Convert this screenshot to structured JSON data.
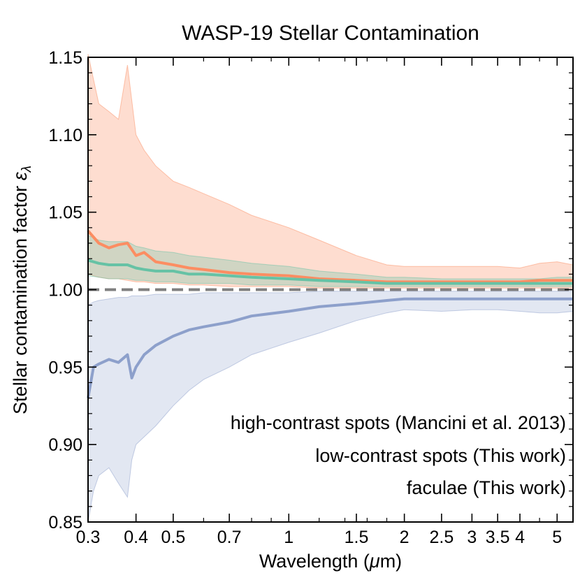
{
  "chart_data": {
    "type": "line",
    "title": "WASP-19 Stellar Contamination",
    "xlabel_main": "Wavelength (",
    "xlabel_unit_symbol": "μ",
    "xlabel_unit": "m)",
    "ylabel_main": "Stellar contamination factor ",
    "ylabel_symbol": "ε",
    "ylabel_sub": "λ",
    "x_scale": "log",
    "xlim": [
      0.3,
      5.5
    ],
    "ylim": [
      0.85,
      1.15
    ],
    "x_ticks": [
      {
        "value": 0.3,
        "label": "0.3"
      },
      {
        "value": 0.4,
        "label": "0.4"
      },
      {
        "value": 0.5,
        "label": "0.5"
      },
      {
        "value": 0.7,
        "label": "0.7"
      },
      {
        "value": 1.0,
        "label": "1"
      },
      {
        "value": 1.5,
        "label": "1.5"
      },
      {
        "value": 2.0,
        "label": "2"
      },
      {
        "value": 2.5,
        "label": "2.5"
      },
      {
        "value": 3.0,
        "label": "3"
      },
      {
        "value": 3.5,
        "label": "3.5"
      },
      {
        "value": 4.0,
        "label": "4"
      },
      {
        "value": 5.0,
        "label": "5"
      }
    ],
    "y_ticks": [
      {
        "value": 0.85,
        "label": "0.85"
      },
      {
        "value": 0.9,
        "label": "0.90"
      },
      {
        "value": 0.95,
        "label": "0.95"
      },
      {
        "value": 1.0,
        "label": "1.00"
      },
      {
        "value": 1.05,
        "label": "1.05"
      },
      {
        "value": 1.1,
        "label": "1.10"
      },
      {
        "value": 1.15,
        "label": "1.15"
      }
    ],
    "reference_line": {
      "y": 1.0,
      "color": "#808080",
      "style": "dashed"
    },
    "series": [
      {
        "name": "low-contrast spots (This work)",
        "color": "#fc8d62",
        "x": [
          0.3,
          0.32,
          0.34,
          0.36,
          0.38,
          0.4,
          0.42,
          0.45,
          0.5,
          0.55,
          0.6,
          0.7,
          0.8,
          1.0,
          1.2,
          1.5,
          1.8,
          2.0,
          2.5,
          3.0,
          3.5,
          4.0,
          4.5,
          5.0,
          5.5
        ],
        "y": [
          1.038,
          1.03,
          1.027,
          1.029,
          1.03,
          1.022,
          1.024,
          1.018,
          1.016,
          1.014,
          1.013,
          1.011,
          1.01,
          1.009,
          1.007,
          1.006,
          1.005,
          1.005,
          1.005,
          1.005,
          1.005,
          1.005,
          1.006,
          1.006,
          1.006
        ],
        "upper": [
          1.152,
          1.12,
          1.115,
          1.11,
          1.145,
          1.1,
          1.09,
          1.08,
          1.07,
          1.066,
          1.062,
          1.055,
          1.048,
          1.04,
          1.032,
          1.022,
          1.016,
          1.015,
          1.015,
          1.015,
          1.015,
          1.014,
          1.017,
          1.018,
          1.016
        ],
        "lower": [
          1.01,
          1.008,
          1.007,
          1.007,
          1.006,
          1.005,
          1.005,
          1.004,
          1.004,
          1.003,
          1.003,
          1.002,
          1.002,
          1.002,
          1.001,
          1.001,
          1.001,
          1.001,
          1.001,
          1.001,
          1.001,
          1.001,
          1.001,
          1.001,
          1.001
        ]
      },
      {
        "name": "high-contrast spots (Mancini et al. 2013)",
        "color": "#66c2a5",
        "x": [
          0.3,
          0.32,
          0.34,
          0.36,
          0.38,
          0.4,
          0.42,
          0.45,
          0.5,
          0.55,
          0.6,
          0.7,
          0.8,
          1.0,
          1.2,
          1.5,
          1.8,
          2.0,
          2.5,
          3.0,
          3.5,
          4.0,
          4.5,
          5.0,
          5.5
        ],
        "y": [
          1.019,
          1.017,
          1.016,
          1.016,
          1.016,
          1.014,
          1.013,
          1.012,
          1.012,
          1.01,
          1.01,
          1.009,
          1.008,
          1.007,
          1.006,
          1.005,
          1.004,
          1.004,
          1.004,
          1.004,
          1.004,
          1.004,
          1.004,
          1.004,
          1.004
        ],
        "upper": [
          1.035,
          1.032,
          1.031,
          1.031,
          1.031,
          1.028,
          1.027,
          1.025,
          1.024,
          1.022,
          1.021,
          1.019,
          1.017,
          1.015,
          1.012,
          1.01,
          1.008,
          1.008,
          1.007,
          1.007,
          1.007,
          1.007,
          1.007,
          1.008,
          1.008
        ],
        "lower": [
          1.009,
          1.008,
          1.007,
          1.007,
          1.007,
          1.006,
          1.006,
          1.005,
          1.005,
          1.004,
          1.004,
          1.004,
          1.003,
          1.003,
          1.002,
          1.002,
          1.002,
          1.002,
          1.002,
          1.002,
          1.002,
          1.002,
          1.002,
          1.002,
          1.002
        ]
      },
      {
        "name": "faculae (This work)",
        "color": "#8da0cb",
        "x": [
          0.3,
          0.31,
          0.32,
          0.34,
          0.36,
          0.38,
          0.39,
          0.4,
          0.42,
          0.45,
          0.5,
          0.55,
          0.6,
          0.7,
          0.8,
          1.0,
          1.2,
          1.5,
          1.8,
          2.0,
          2.5,
          3.0,
          3.5,
          4.0,
          4.5,
          5.0,
          5.5
        ],
        "y": [
          0.93,
          0.95,
          0.952,
          0.955,
          0.953,
          0.958,
          0.943,
          0.95,
          0.958,
          0.964,
          0.97,
          0.974,
          0.976,
          0.979,
          0.983,
          0.986,
          0.989,
          0.991,
          0.993,
          0.994,
          0.994,
          0.994,
          0.994,
          0.994,
          0.994,
          0.994,
          0.994
        ],
        "upper": [
          0.99,
          0.992,
          0.993,
          0.994,
          0.995,
          0.995,
          0.996,
          0.996,
          0.996,
          0.997,
          0.997,
          0.997,
          0.998,
          0.998,
          0.998,
          0.998,
          0.999,
          0.999,
          0.999,
          0.999,
          0.999,
          0.999,
          0.999,
          0.999,
          0.999,
          0.999,
          0.999
        ],
        "lower": [
          0.85,
          0.87,
          0.88,
          0.885,
          0.875,
          0.866,
          0.89,
          0.9,
          0.905,
          0.912,
          0.925,
          0.935,
          0.942,
          0.95,
          0.958,
          0.966,
          0.972,
          0.98,
          0.985,
          0.987,
          0.986,
          0.987,
          0.987,
          0.986,
          0.985,
          0.985,
          0.986
        ]
      }
    ],
    "legend": {
      "placement": "lower-right",
      "entries": [
        {
          "label": "high-contrast spots (Mancini et al. 2013)",
          "color": "#66c2a5"
        },
        {
          "label": "low-contrast spots (This work)",
          "color": "#fc8d62"
        },
        {
          "label": "faculae (This work)",
          "color": "#8da0cb"
        }
      ]
    }
  }
}
